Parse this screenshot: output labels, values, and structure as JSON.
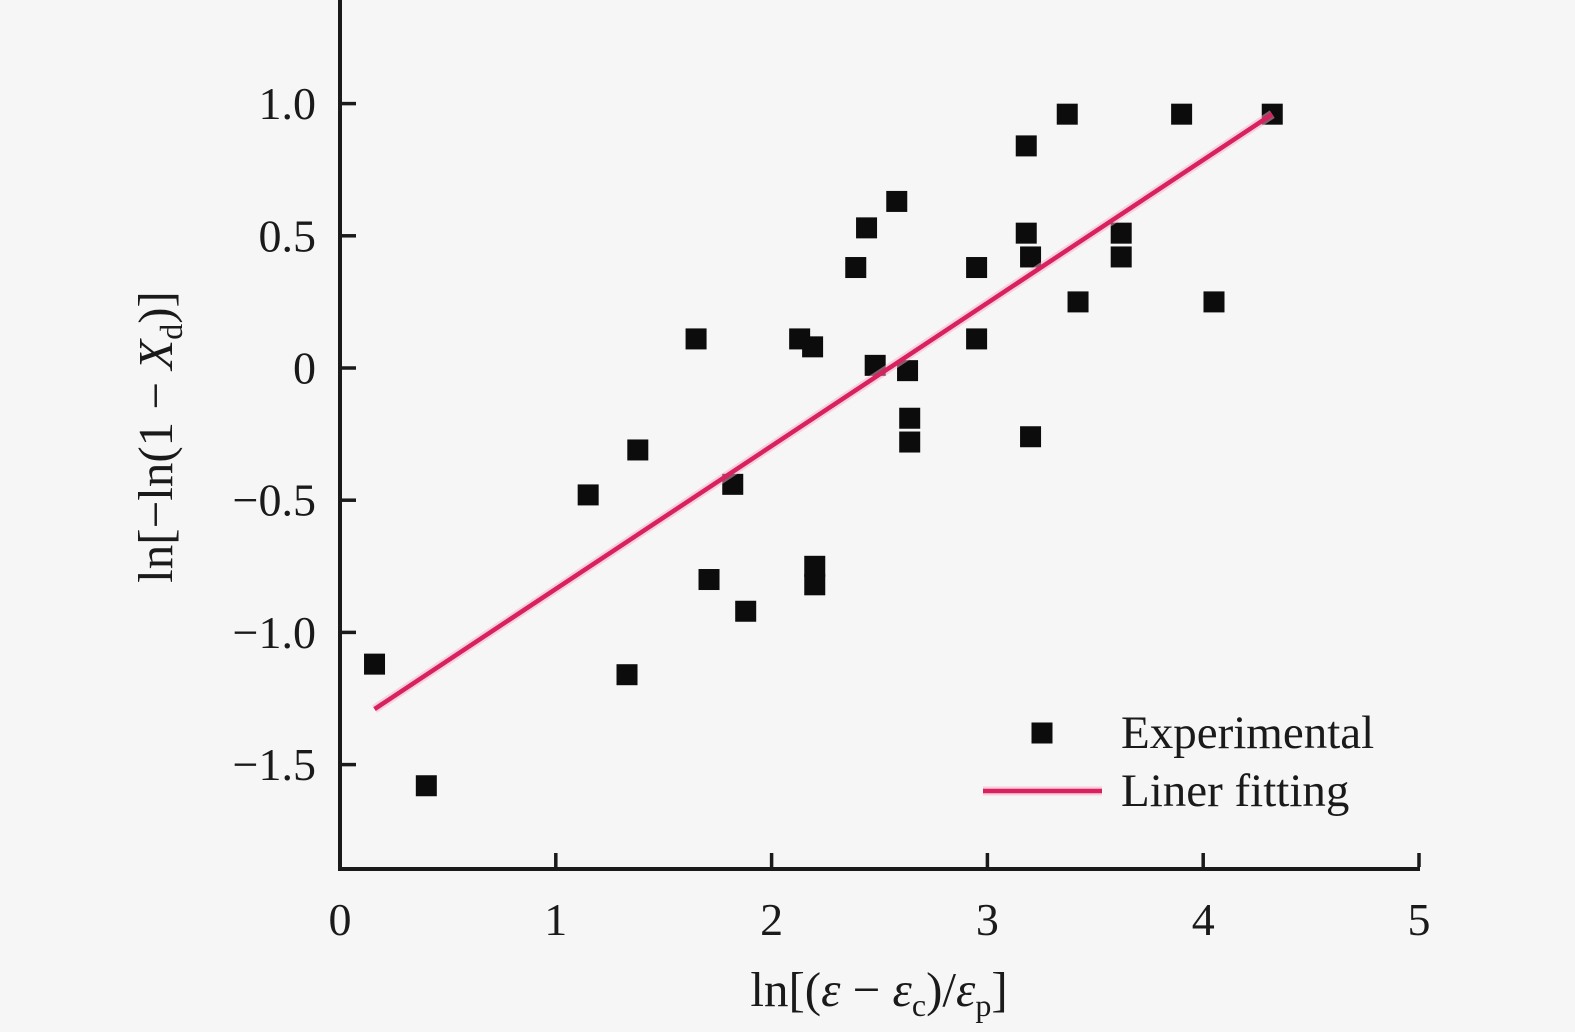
{
  "figure": {
    "background": "#f7f6f6",
    "axis_color": "#1a1a1a",
    "marker_color": "#0c0c0c",
    "line_color": "#d8215f",
    "line_halo_color": "#f7aecb"
  },
  "chart_data": {
    "type": "scatter",
    "title": "",
    "xlabel": "ln[(ε − εc)/εp]",
    "ylabel": "ln[−ln(1 − Xd)]",
    "xlabel_parts": [
      {
        "t": "ln[("
      },
      {
        "t": "ε",
        "italic": true
      },
      {
        "t": " − "
      },
      {
        "t": "ε",
        "italic": true
      },
      {
        "t": "c",
        "sub": true
      },
      {
        "t": ")/"
      },
      {
        "t": "ε",
        "italic": true
      },
      {
        "t": "p",
        "sub": true
      },
      {
        "t": "]"
      }
    ],
    "ylabel_parts": [
      {
        "t": "ln[−ln(1 − "
      },
      {
        "t": "X",
        "italic": true
      },
      {
        "t": "d",
        "sub": true
      },
      {
        "t": ")]"
      }
    ],
    "xlim": [
      0,
      5
    ],
    "ylim": [
      -1.89,
      1.39
    ],
    "grid": false,
    "x_ticks": [
      0,
      1,
      2,
      3,
      4,
      5
    ],
    "x_tick_labels": [
      "0",
      "1",
      "2",
      "3",
      "4",
      "5"
    ],
    "y_ticks": [
      1.0,
      0.5,
      0,
      -0.5,
      -1.0,
      -1.5
    ],
    "y_tick_labels": [
      "1.0",
      "0.5",
      "0",
      "−0.5",
      "−1.0",
      "−1.5"
    ],
    "legend_position": "lower right",
    "series": [
      {
        "name": "Experimental",
        "type": "scatter",
        "marker": "square",
        "color": "#0c0c0c",
        "points": [
          [
            0.16,
            -1.12
          ],
          [
            0.4,
            -1.58
          ],
          [
            1.15,
            -0.48
          ],
          [
            1.33,
            -1.16
          ],
          [
            1.38,
            -0.31
          ],
          [
            1.65,
            0.11
          ],
          [
            1.71,
            -0.8
          ],
          [
            1.82,
            -0.44
          ],
          [
            1.88,
            -0.92
          ],
          [
            2.13,
            0.11
          ],
          [
            2.19,
            0.08
          ],
          [
            2.2,
            -0.75
          ],
          [
            2.2,
            -0.82
          ],
          [
            2.39,
            0.38
          ],
          [
            2.44,
            0.53
          ],
          [
            2.48,
            0.01
          ],
          [
            2.58,
            0.63
          ],
          [
            2.63,
            -0.01
          ],
          [
            2.64,
            -0.19
          ],
          [
            2.64,
            -0.28
          ],
          [
            2.95,
            0.38
          ],
          [
            2.95,
            0.11
          ],
          [
            3.18,
            0.84
          ],
          [
            3.18,
            0.51
          ],
          [
            3.2,
            0.42
          ],
          [
            3.2,
            -0.26
          ],
          [
            3.37,
            0.96
          ],
          [
            3.42,
            0.25
          ],
          [
            3.62,
            0.51
          ],
          [
            3.62,
            0.42
          ],
          [
            3.9,
            0.96
          ],
          [
            4.05,
            0.25
          ],
          [
            4.32,
            0.96
          ]
        ]
      },
      {
        "name": "Liner fitting",
        "type": "line",
        "color": "#d8215f",
        "points": [
          [
            0.16,
            -1.29
          ],
          [
            4.32,
            0.96
          ]
        ]
      }
    ]
  },
  "legend": {
    "items": [
      {
        "label": "Experimental",
        "swatch": "black-square-marker"
      },
      {
        "label": "Liner fitting",
        "swatch": "pink-line"
      }
    ]
  }
}
